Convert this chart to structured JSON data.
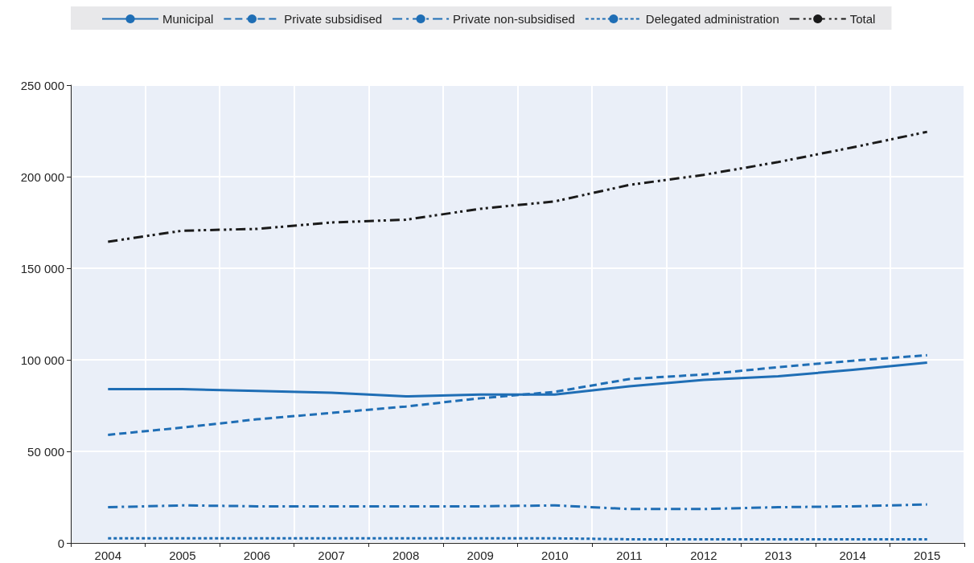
{
  "chart_data": {
    "type": "line",
    "categories": [
      "2004",
      "2005",
      "2006",
      "2007",
      "2008",
      "2009",
      "2010",
      "2011",
      "2012",
      "2013",
      "2014",
      "2015"
    ],
    "series": [
      {
        "name": "Municipal",
        "color": "#1f6eb5",
        "line_style": "solid",
        "values": [
          84000,
          84000,
          83000,
          82000,
          80000,
          81000,
          81000,
          85500,
          89000,
          91000,
          94500,
          98500
        ]
      },
      {
        "name": "Private subsidised",
        "color": "#1f6eb5",
        "line_style": "dashed",
        "values": [
          59000,
          63000,
          67500,
          71000,
          74500,
          79000,
          82500,
          89500,
          92000,
          96000,
          99500,
          102500
        ]
      },
      {
        "name": "Private non-subsidised",
        "color": "#1f6eb5",
        "line_style": "dashdot",
        "values": [
          19500,
          20500,
          20000,
          20000,
          20000,
          20000,
          20500,
          18500,
          18500,
          19500,
          20000,
          21000
        ]
      },
      {
        "name": "Delegated administration",
        "color": "#1f6eb5",
        "line_style": "dotted",
        "values": [
          2500,
          2500,
          2500,
          2500,
          2500,
          2500,
          2500,
          2000,
          2000,
          2000,
          2000,
          2000
        ]
      },
      {
        "name": "Total",
        "color": "#1a1a1a",
        "line_style": "dashdotdot",
        "values": [
          164500,
          170500,
          171500,
          175000,
          176500,
          182500,
          186500,
          195500,
          201000,
          208000,
          216000,
          224500
        ]
      }
    ],
    "ylim": [
      0,
      250000
    ],
    "yticks": [
      {
        "value": 0,
        "label": "0"
      },
      {
        "value": 50000,
        "label": "50 000"
      },
      {
        "value": 100000,
        "label": "100 000"
      },
      {
        "value": 150000,
        "label": "150 000"
      },
      {
        "value": 200000,
        "label": "200 000"
      },
      {
        "value": 250000,
        "label": "250 000"
      }
    ],
    "grid": true,
    "legend": "top"
  }
}
